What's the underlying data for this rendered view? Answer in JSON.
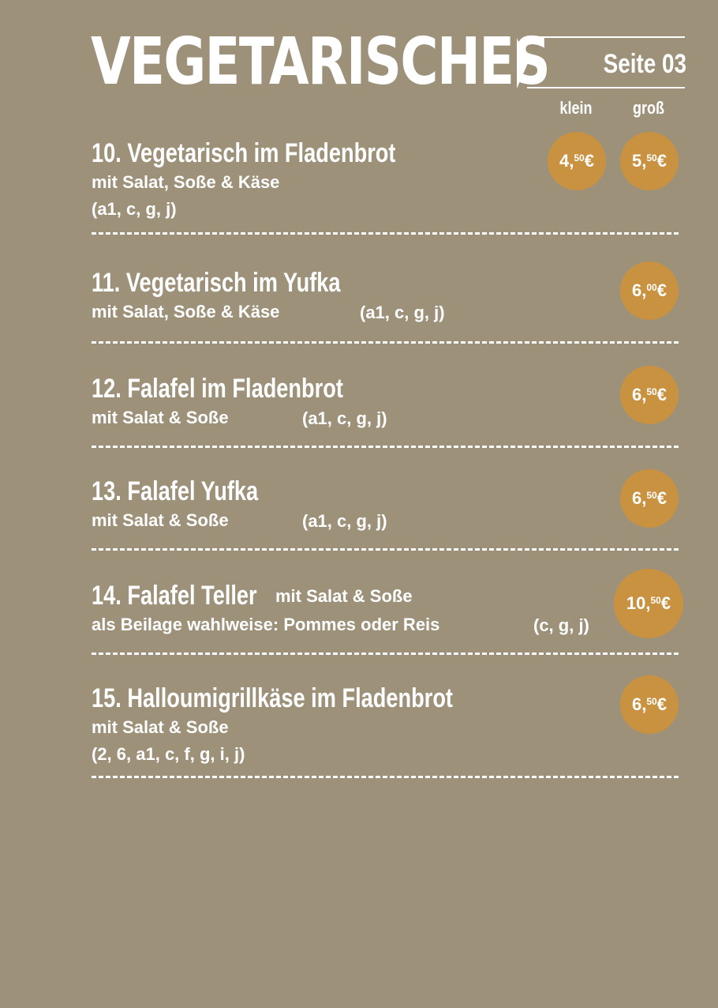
{
  "header": {
    "title": "VEGETARISCHES",
    "page": "Seite 03",
    "size_small": "klein",
    "size_large": "groß"
  },
  "colors": {
    "background": "#9d917a",
    "price_badge": "#c99240",
    "text": "#ffffff"
  },
  "items": [
    {
      "name": "10. Vegetarisch im Fladenbrot",
      "desc": "mit Salat, Soße & Käse",
      "allergens": "(a1, c, g, j)",
      "price_small_main": "4,",
      "price_small_cents": "50",
      "price_small_cur": "€",
      "price_large_main": "5,",
      "price_large_cents": "50",
      "price_large_cur": "€"
    },
    {
      "name": "11. Vegetarisch im Yufka",
      "desc": "mit Salat, Soße & Käse",
      "allergens": "(a1, c, g, j)",
      "price_main": "6,",
      "price_cents": "00",
      "price_cur": "€"
    },
    {
      "name": "12. Falafel im Fladenbrot",
      "desc": "mit Salat & Soße",
      "allergens": "(a1, c, g, j)",
      "price_main": "6,",
      "price_cents": "50",
      "price_cur": "€"
    },
    {
      "name": "13. Falafel Yufka",
      "desc": "mit Salat & Soße",
      "allergens": "(a1, c, g, j)",
      "price_main": "6,",
      "price_cents": "50",
      "price_cur": "€"
    },
    {
      "name": "14. Falafel Teller",
      "desc_inline": "mit Salat & Soße",
      "desc": "als Beilage wahlweise: Pommes oder Reis",
      "allergens": "(c, g, j)",
      "price_main": "10,",
      "price_cents": "50",
      "price_cur": "€"
    },
    {
      "name": "15. Halloumigrillkäse im Fladenbrot",
      "desc": "mit Salat & Soße",
      "allergens": "(2, 6, a1, c, f, g, i, j)",
      "price_main": "6,",
      "price_cents": "50",
      "price_cur": "€"
    }
  ]
}
